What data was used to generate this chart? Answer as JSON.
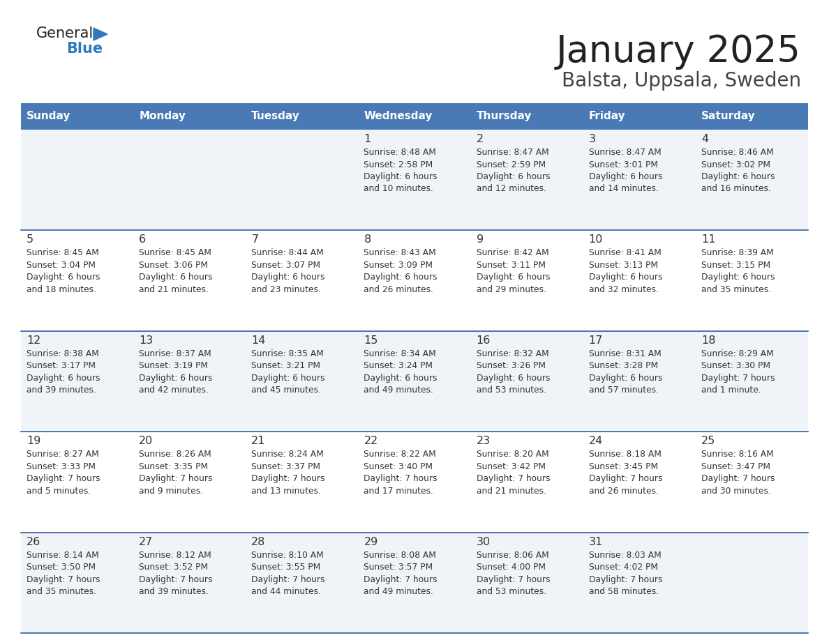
{
  "title": "January 2025",
  "subtitle": "Balsta, Uppsala, Sweden",
  "days_of_week": [
    "Sunday",
    "Monday",
    "Tuesday",
    "Wednesday",
    "Thursday",
    "Friday",
    "Saturday"
  ],
  "header_bg": "#4a7ab5",
  "header_text": "#ffffff",
  "row_bg_light": "#f0f4f8",
  "row_bg_white": "#ffffff",
  "cell_text_color": "#333333",
  "divider_color": "#2e5fa3",
  "title_color": "#222222",
  "subtitle_color": "#444444",
  "logo_general_color": "#222222",
  "logo_blue_color": "#2e7abf",
  "logo_triangle_color": "#2e7abf",
  "calendar_data": [
    [
      {
        "day": "",
        "sunrise": "",
        "sunset": "",
        "daylight": ""
      },
      {
        "day": "",
        "sunrise": "",
        "sunset": "",
        "daylight": ""
      },
      {
        "day": "",
        "sunrise": "",
        "sunset": "",
        "daylight": ""
      },
      {
        "day": "1",
        "sunrise": "8:48 AM",
        "sunset": "2:58 PM",
        "daylight": "6 hours\nand 10 minutes."
      },
      {
        "day": "2",
        "sunrise": "8:47 AM",
        "sunset": "2:59 PM",
        "daylight": "6 hours\nand 12 minutes."
      },
      {
        "day": "3",
        "sunrise": "8:47 AM",
        "sunset": "3:01 PM",
        "daylight": "6 hours\nand 14 minutes."
      },
      {
        "day": "4",
        "sunrise": "8:46 AM",
        "sunset": "3:02 PM",
        "daylight": "6 hours\nand 16 minutes."
      }
    ],
    [
      {
        "day": "5",
        "sunrise": "8:45 AM",
        "sunset": "3:04 PM",
        "daylight": "6 hours\nand 18 minutes."
      },
      {
        "day": "6",
        "sunrise": "8:45 AM",
        "sunset": "3:06 PM",
        "daylight": "6 hours\nand 21 minutes."
      },
      {
        "day": "7",
        "sunrise": "8:44 AM",
        "sunset": "3:07 PM",
        "daylight": "6 hours\nand 23 minutes."
      },
      {
        "day": "8",
        "sunrise": "8:43 AM",
        "sunset": "3:09 PM",
        "daylight": "6 hours\nand 26 minutes."
      },
      {
        "day": "9",
        "sunrise": "8:42 AM",
        "sunset": "3:11 PM",
        "daylight": "6 hours\nand 29 minutes."
      },
      {
        "day": "10",
        "sunrise": "8:41 AM",
        "sunset": "3:13 PM",
        "daylight": "6 hours\nand 32 minutes."
      },
      {
        "day": "11",
        "sunrise": "8:39 AM",
        "sunset": "3:15 PM",
        "daylight": "6 hours\nand 35 minutes."
      }
    ],
    [
      {
        "day": "12",
        "sunrise": "8:38 AM",
        "sunset": "3:17 PM",
        "daylight": "6 hours\nand 39 minutes."
      },
      {
        "day": "13",
        "sunrise": "8:37 AM",
        "sunset": "3:19 PM",
        "daylight": "6 hours\nand 42 minutes."
      },
      {
        "day": "14",
        "sunrise": "8:35 AM",
        "sunset": "3:21 PM",
        "daylight": "6 hours\nand 45 minutes."
      },
      {
        "day": "15",
        "sunrise": "8:34 AM",
        "sunset": "3:24 PM",
        "daylight": "6 hours\nand 49 minutes."
      },
      {
        "day": "16",
        "sunrise": "8:32 AM",
        "sunset": "3:26 PM",
        "daylight": "6 hours\nand 53 minutes."
      },
      {
        "day": "17",
        "sunrise": "8:31 AM",
        "sunset": "3:28 PM",
        "daylight": "6 hours\nand 57 minutes."
      },
      {
        "day": "18",
        "sunrise": "8:29 AM",
        "sunset": "3:30 PM",
        "daylight": "7 hours\nand 1 minute."
      }
    ],
    [
      {
        "day": "19",
        "sunrise": "8:27 AM",
        "sunset": "3:33 PM",
        "daylight": "7 hours\nand 5 minutes."
      },
      {
        "day": "20",
        "sunrise": "8:26 AM",
        "sunset": "3:35 PM",
        "daylight": "7 hours\nand 9 minutes."
      },
      {
        "day": "21",
        "sunrise": "8:24 AM",
        "sunset": "3:37 PM",
        "daylight": "7 hours\nand 13 minutes."
      },
      {
        "day": "22",
        "sunrise": "8:22 AM",
        "sunset": "3:40 PM",
        "daylight": "7 hours\nand 17 minutes."
      },
      {
        "day": "23",
        "sunrise": "8:20 AM",
        "sunset": "3:42 PM",
        "daylight": "7 hours\nand 21 minutes."
      },
      {
        "day": "24",
        "sunrise": "8:18 AM",
        "sunset": "3:45 PM",
        "daylight": "7 hours\nand 26 minutes."
      },
      {
        "day": "25",
        "sunrise": "8:16 AM",
        "sunset": "3:47 PM",
        "daylight": "7 hours\nand 30 minutes."
      }
    ],
    [
      {
        "day": "26",
        "sunrise": "8:14 AM",
        "sunset": "3:50 PM",
        "daylight": "7 hours\nand 35 minutes."
      },
      {
        "day": "27",
        "sunrise": "8:12 AM",
        "sunset": "3:52 PM",
        "daylight": "7 hours\nand 39 minutes."
      },
      {
        "day": "28",
        "sunrise": "8:10 AM",
        "sunset": "3:55 PM",
        "daylight": "7 hours\nand 44 minutes."
      },
      {
        "day": "29",
        "sunrise": "8:08 AM",
        "sunset": "3:57 PM",
        "daylight": "7 hours\nand 49 minutes."
      },
      {
        "day": "30",
        "sunrise": "8:06 AM",
        "sunset": "4:00 PM",
        "daylight": "7 hours\nand 53 minutes."
      },
      {
        "day": "31",
        "sunrise": "8:03 AM",
        "sunset": "4:02 PM",
        "daylight": "7 hours\nand 58 minutes."
      },
      {
        "day": "",
        "sunrise": "",
        "sunset": "",
        "daylight": ""
      }
    ]
  ]
}
